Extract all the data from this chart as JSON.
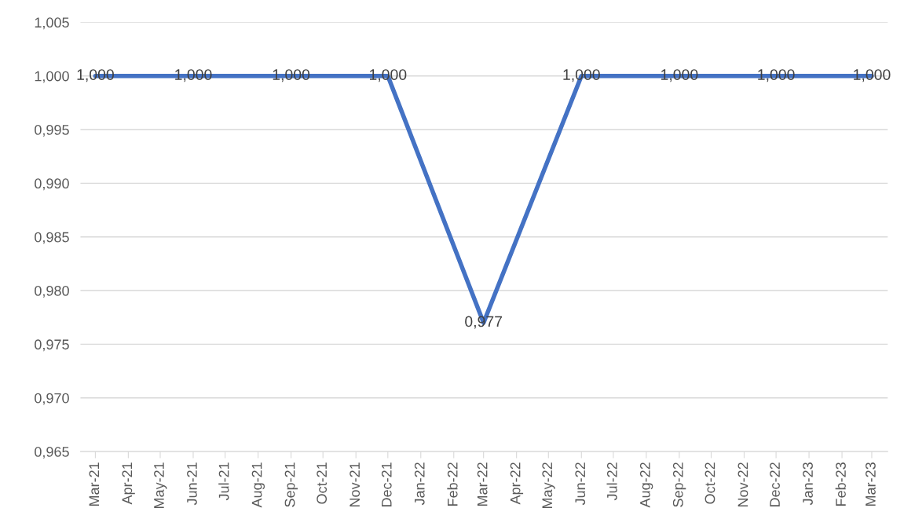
{
  "chart_data": {
    "type": "line",
    "x": [
      "2021-03",
      "2021-06",
      "2021-09",
      "2021-12",
      "2022-03",
      "2022-06",
      "2022-09",
      "2022-12",
      "2023-03"
    ],
    "series": [
      {
        "color": "#4472c4",
        "values": [
          1.0,
          1.0,
          1.0,
          1.0,
          0.977,
          1.0,
          1.0,
          1.0,
          1.0
        ],
        "value_labels": [
          "1,000",
          "1,000",
          "1,000",
          "1,000",
          "0,977",
          "1,000",
          "1,000",
          "1,000",
          "1,000"
        ]
      }
    ],
    "xlim": [
      "2021-02-15",
      "2023-03-16"
    ],
    "xticks": [
      {
        "value": "2021-03",
        "label": "Mar-21"
      },
      {
        "value": "2021-04",
        "label": "Apr-21"
      },
      {
        "value": "2021-05",
        "label": "May-21"
      },
      {
        "value": "2021-06",
        "label": "Jun-21"
      },
      {
        "value": "2021-07",
        "label": "Jul-21"
      },
      {
        "value": "2021-08",
        "label": "Aug-21"
      },
      {
        "value": "2021-09",
        "label": "Sep-21"
      },
      {
        "value": "2021-10",
        "label": "Oct-21"
      },
      {
        "value": "2021-11",
        "label": "Nov-21"
      },
      {
        "value": "2021-12",
        "label": "Dec-21"
      },
      {
        "value": "2022-01",
        "label": "Jan-22"
      },
      {
        "value": "2022-02",
        "label": "Feb-22"
      },
      {
        "value": "2022-03",
        "label": "Mar-22"
      },
      {
        "value": "2022-04",
        "label": "Apr-22"
      },
      {
        "value": "2022-05",
        "label": "May-22"
      },
      {
        "value": "2022-06",
        "label": "Jun-22"
      },
      {
        "value": "2022-07",
        "label": "Jul-22"
      },
      {
        "value": "2022-08",
        "label": "Aug-22"
      },
      {
        "value": "2022-09",
        "label": "Sep-22"
      },
      {
        "value": "2022-10",
        "label": "Oct-22"
      },
      {
        "value": "2022-11",
        "label": "Nov-22"
      },
      {
        "value": "2022-12",
        "label": "Dec-22"
      },
      {
        "value": "2023-01",
        "label": "Jan-23"
      },
      {
        "value": "2023-02",
        "label": "Feb-23"
      },
      {
        "value": "2023-03",
        "label": "Mar-23"
      }
    ],
    "ylim": [
      0.965,
      1.005
    ],
    "yticks": [
      {
        "value": 0.965,
        "label": "0,965"
      },
      {
        "value": 0.97,
        "label": "0,970"
      },
      {
        "value": 0.975,
        "label": "0,975"
      },
      {
        "value": 0.98,
        "label": "0,980"
      },
      {
        "value": 0.985,
        "label": "0,985"
      },
      {
        "value": 0.99,
        "label": "0,990"
      },
      {
        "value": 0.995,
        "label": "0,995"
      },
      {
        "value": 1.0,
        "label": "1,000"
      },
      {
        "value": 1.005,
        "label": "1,005"
      }
    ],
    "grid": "y",
    "marker": "none",
    "line_style": "solid"
  }
}
